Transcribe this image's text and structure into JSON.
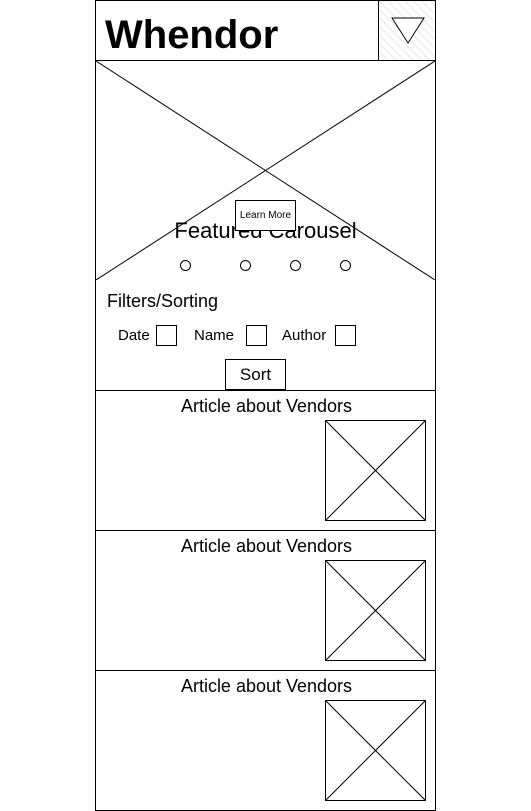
{
  "header": {
    "title": "Whendor",
    "menu_icon": "triangle-down-icon"
  },
  "carousel": {
    "title": "Featured Carousel",
    "cta_label": "Learn More",
    "indicator_count": 4
  },
  "filters": {
    "heading": "Filters/Sorting",
    "options": [
      {
        "label": "Date"
      },
      {
        "label": "Name"
      },
      {
        "label": "Author"
      }
    ],
    "sort_label": "Sort"
  },
  "articles": [
    {
      "title": "Article about Vendors"
    },
    {
      "title": "Article about Vendors"
    },
    {
      "title": "Article about Vendors"
    }
  ]
}
